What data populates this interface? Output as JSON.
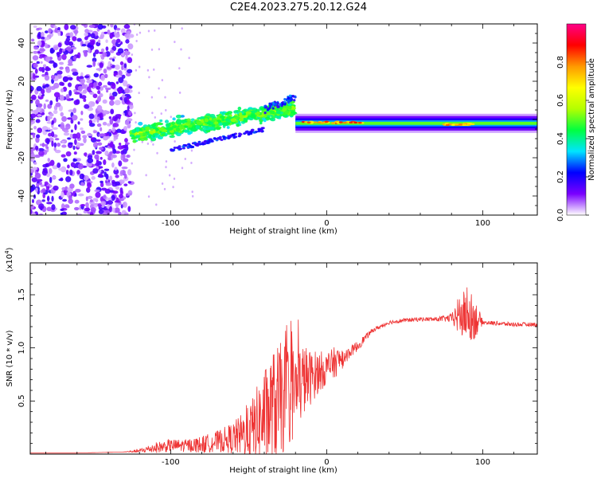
{
  "chart_data": [
    {
      "type": "heatmap",
      "title": "C2E4.2023.275.20.12.G24",
      "xlabel": "Height of straight line (km)",
      "ylabel": "Frequency (Hz)",
      "xlim": [
        -190,
        135
      ],
      "ylim": [
        -50,
        50
      ],
      "xticks": [
        -100,
        0,
        100
      ],
      "yticks": [
        -40,
        -20,
        0,
        20,
        40
      ],
      "colorbar": {
        "label": "Normalized spectral amplitude",
        "range": [
          0,
          1
        ],
        "ticks": [
          "0.0",
          "0.2",
          "0.4",
          "0.6",
          "0.8"
        ],
        "tick_values": [
          0.0,
          0.2,
          0.4,
          0.6,
          0.8
        ],
        "colors": [
          "#ffffff",
          "#7a00ff",
          "#0000ff",
          "#00e5ff",
          "#00ff40",
          "#b4ff00",
          "#ffff00",
          "#ff9900",
          "#ff0000",
          "#ff0088"
        ]
      },
      "regions": [
        {
          "name": "noise",
          "x_range": [
            -190,
            -125
          ],
          "f_range": [
            -50,
            50
          ],
          "amplitude": 0.05
        },
        {
          "name": "broad-signal",
          "x_range": [
            -125,
            -20
          ],
          "f_center_start": -8,
          "f_center_end": 6,
          "spread_hz": 6,
          "amplitude": 0.35
        },
        {
          "name": "upper-branch",
          "x_range": [
            -40,
            -20
          ],
          "f_center_start": 5,
          "f_center_end": 12,
          "amplitude": 0.3
        },
        {
          "name": "lower-branch",
          "x_range": [
            -100,
            -40
          ],
          "f_center_start": -16,
          "f_center_end": -5,
          "amplitude": 0.25
        },
        {
          "name": "narrow-tone",
          "x_range": [
            -20,
            135
          ],
          "f_center": -2,
          "width_hz": 3,
          "amplitude": 0.55
        },
        {
          "name": "peak-core",
          "x_range": [
            -15,
            25
          ],
          "f_center": -1.5,
          "amplitude": 0.9
        },
        {
          "name": "peak-core-2",
          "x_range": [
            75,
            95
          ],
          "f_center": -2.5,
          "amplitude": 0.85
        }
      ]
    },
    {
      "type": "line",
      "title": "",
      "xlabel": "Height of straight line (km)",
      "ylabel": "SNR (10 * v/v)",
      "y_multiplier": "(x10",
      "y_multiplier_exp": "4",
      "y_multiplier_close": ")",
      "xlim": [
        -190,
        135
      ],
      "ylim": [
        0,
        1.8
      ],
      "xticks": [
        -100,
        0,
        100
      ],
      "yticks": [
        0.5,
        1.0,
        1.5
      ],
      "ytick_labels": [
        "0.5",
        "1.0",
        "1.5"
      ],
      "series": [
        {
          "name": "SNR",
          "color": "#ee3333",
          "x": [
            -190,
            -160,
            -130,
            -120,
            -110,
            -100,
            -90,
            -80,
            -70,
            -60,
            -50,
            -45,
            -40,
            -35,
            -30,
            -25,
            -20,
            -15,
            -10,
            -5,
            0,
            5,
            10,
            15,
            20,
            25,
            30,
            40,
            50,
            60,
            70,
            80,
            85,
            90,
            95,
            100,
            110,
            120,
            135
          ],
          "y": [
            0.01,
            0.01,
            0.02,
            0.03,
            0.06,
            0.08,
            0.08,
            0.09,
            0.12,
            0.15,
            0.2,
            0.28,
            0.35,
            0.42,
            0.5,
            0.55,
            0.6,
            0.7,
            0.72,
            0.78,
            0.8,
            0.86,
            0.9,
            0.96,
            1.02,
            1.1,
            1.17,
            1.24,
            1.26,
            1.27,
            1.27,
            1.28,
            1.3,
            1.31,
            1.28,
            1.24,
            1.23,
            1.22,
            1.22
          ],
          "noise": [
            0.0,
            0.0,
            0.0,
            0.02,
            0.05,
            0.06,
            0.06,
            0.08,
            0.1,
            0.15,
            0.25,
            0.35,
            0.45,
            0.55,
            0.55,
            0.5,
            0.45,
            0.35,
            0.25,
            0.2,
            0.15,
            0.15,
            0.1,
            0.05,
            0.05,
            0.03,
            0.02,
            0.02,
            0.02,
            0.02,
            0.02,
            0.04,
            0.2,
            0.25,
            0.2,
            0.02,
            0.02,
            0.02,
            0.02
          ]
        }
      ]
    }
  ]
}
